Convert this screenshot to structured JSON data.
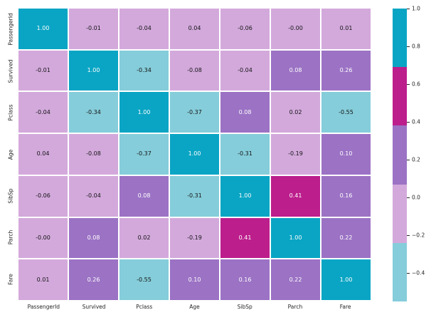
{
  "chart_data": {
    "type": "heatmap",
    "title": "",
    "x_categories": [
      "PassengerId",
      "Survived",
      "Pclass",
      "Age",
      "SibSp",
      "Parch",
      "Fare"
    ],
    "y_categories": [
      "PassengerId",
      "Survived",
      "Pclass",
      "Age",
      "SibSp",
      "Parch",
      "Fare"
    ],
    "annotations": [
      [
        "1.00",
        "-0.01",
        "-0.04",
        "0.04",
        "-0.06",
        "-0.00",
        "0.01"
      ],
      [
        "-0.01",
        "1.00",
        "-0.34",
        "-0.08",
        "-0.04",
        "0.08",
        "0.26"
      ],
      [
        "-0.04",
        "-0.34",
        "1.00",
        "-0.37",
        "0.08",
        "0.02",
        "-0.55"
      ],
      [
        "0.04",
        "-0.08",
        "-0.37",
        "1.00",
        "-0.31",
        "-0.19",
        "0.10"
      ],
      [
        "-0.06",
        "-0.04",
        "0.08",
        "-0.31",
        "1.00",
        "0.41",
        "0.16"
      ],
      [
        "-0.00",
        "0.08",
        "0.02",
        "-0.19",
        "0.41",
        "1.00",
        "0.22"
      ],
      [
        "0.01",
        "0.26",
        "-0.55",
        "0.10",
        "0.16",
        "0.22",
        "1.00"
      ]
    ],
    "vmin": -0.55,
    "vmax": 1.0,
    "palette_segments": [
      {
        "from": 0.69,
        "to": 1.0,
        "color": "#0aa5c4",
        "text_color": "#ffffff"
      },
      {
        "from": 0.38,
        "to": 0.69,
        "color": "#bc1e8c",
        "text_color": "#ffffff"
      },
      {
        "from": 0.07,
        "to": 0.38,
        "color": "#9b72c4",
        "text_color": "#ffffff"
      },
      {
        "from": -0.24,
        "to": 0.07,
        "color": "#d3a9dc",
        "text_color": "#141414"
      },
      {
        "from": -0.55,
        "to": -0.24,
        "color": "#85cdda",
        "text_color": "#141414"
      }
    ],
    "colorbar_ticks": [
      {
        "value": 1.0,
        "label": "1.0"
      },
      {
        "value": 0.8,
        "label": "0.8"
      },
      {
        "value": 0.6,
        "label": "0.6"
      },
      {
        "value": 0.4,
        "label": "0.4"
      },
      {
        "value": 0.2,
        "label": "0.2"
      },
      {
        "value": 0.0,
        "label": "0.0"
      },
      {
        "value": -0.2,
        "label": "−0.2"
      },
      {
        "value": -0.4,
        "label": "−0.4"
      }
    ],
    "grid_line_color": "#ffffff",
    "background_color": "#ffffff",
    "tick_label_color": "#262626",
    "legend_position": "right-colorbar",
    "grid": "off"
  }
}
